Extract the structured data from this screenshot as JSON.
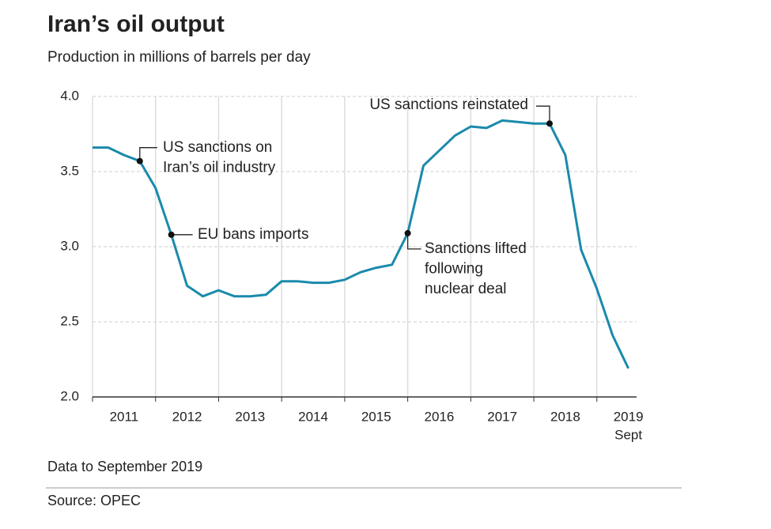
{
  "chart_data": {
    "type": "line",
    "title": "Iran’s oil output",
    "subtitle": "Production in millions of barrels per day",
    "note": "Data to September 2019",
    "source": "Source: OPEC",
    "x": [
      2011,
      2011.25,
      2011.5,
      2011.75,
      2012,
      2012.25,
      2012.5,
      2012.75,
      2013,
      2013.25,
      2013.5,
      2013.75,
      2014,
      2014.25,
      2014.5,
      2014.75,
      2015,
      2015.25,
      2015.5,
      2015.75,
      2016,
      2016.25,
      2016.5,
      2016.75,
      2017,
      2017.25,
      2017.5,
      2017.75,
      2018,
      2018.25,
      2018.5,
      2018.75,
      2019,
      2019.25,
      2019.5
    ],
    "series": [
      {
        "name": "Production",
        "color": "#1a8aab",
        "values": [
          3.66,
          3.66,
          3.61,
          3.57,
          3.39,
          3.08,
          2.74,
          2.67,
          2.71,
          2.67,
          2.67,
          2.68,
          2.77,
          2.77,
          2.76,
          2.76,
          2.78,
          2.83,
          2.86,
          2.88,
          3.09,
          3.54,
          3.64,
          3.74,
          3.8,
          3.79,
          3.84,
          3.83,
          3.82,
          3.82,
          3.61,
          2.98,
          2.72,
          2.41,
          2.19
        ]
      }
    ],
    "xlim": [
      2011,
      2019.63
    ],
    "xticks": [
      {
        "value": 2011.5,
        "label": "2011"
      },
      {
        "value": 2012.5,
        "label": "2012"
      },
      {
        "value": 2013.5,
        "label": "2013"
      },
      {
        "value": 2014.5,
        "label": "2014"
      },
      {
        "value": 2015.5,
        "label": "2015"
      },
      {
        "value": 2016.5,
        "label": "2016"
      },
      {
        "value": 2017.5,
        "label": "2017"
      },
      {
        "value": 2018.5,
        "label": "2018"
      },
      {
        "value": 2019.5,
        "label": "2019"
      }
    ],
    "xtick_sublabel": "Sept",
    "xgrid": [
      2011,
      2012,
      2013,
      2014,
      2015,
      2016,
      2017,
      2018,
      2019
    ],
    "ylim": [
      2.0,
      4.0
    ],
    "yticks": [
      {
        "value": 2,
        "label": "2.0"
      },
      2.5,
      {
        "value": 3,
        "label": "3.0"
      },
      3.5,
      {
        "value": 4,
        "label": "4.0"
      }
    ],
    "grid": true,
    "annotations": [
      {
        "text": [
          "US sanctions on",
          "Iran’s oil industry"
        ]
      },
      {
        "text": [
          "EU bans imports"
        ]
      },
      {
        "text": [
          "Sanctions lifted",
          "following",
          "nuclear deal"
        ]
      },
      {
        "text": [
          "US sanctions reinstated"
        ]
      }
    ]
  }
}
